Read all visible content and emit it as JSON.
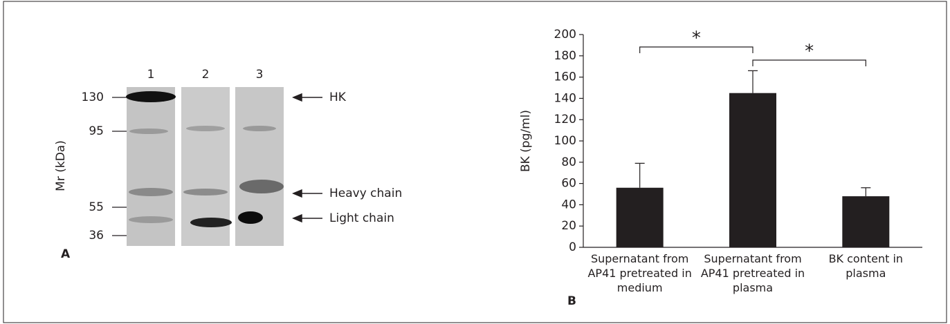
{
  "blot": {
    "panel_label": "A",
    "y_label": "Mr (kDa)",
    "lanes": [
      "1",
      "2",
      "3"
    ],
    "markers": [
      "130",
      "95",
      "55",
      "36"
    ],
    "bands": [
      "HK",
      "Heavy chain",
      "Light chain"
    ]
  },
  "chart_data": {
    "type": "bar",
    "panel_label": "B",
    "y_label": "BK (pg/ml)",
    "categories": [
      "Supernatant from AP41 pretreated in medium",
      "Supernatant from AP41 pretreated in plasma",
      "BK content in plasma"
    ],
    "values": [
      56,
      145,
      48
    ],
    "errors": [
      23,
      21,
      8
    ],
    "color": "#231f20",
    "ylim": [
      0,
      200
    ],
    "yticks": [
      0,
      20,
      40,
      60,
      80,
      100,
      120,
      140,
      160,
      180,
      200
    ],
    "annotations": [
      {
        "text": "*",
        "categories": [
          0,
          1
        ]
      },
      {
        "text": "*",
        "categories": [
          1,
          2
        ]
      }
    ]
  }
}
